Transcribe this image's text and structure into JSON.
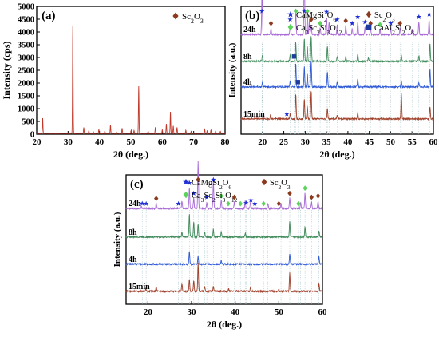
{
  "chart_data": [
    {
      "type": "line",
      "panel_label": "(a)",
      "xlabel": "2θ (deg.)",
      "ylabel": "Intensity (cps)",
      "xlim": [
        20,
        80
      ],
      "ylim": [
        0,
        5000
      ],
      "xticks": [
        20,
        30,
        40,
        50,
        60,
        70,
        80
      ],
      "yticks": [
        0,
        500,
        1000,
        1500,
        2000,
        2500,
        3000,
        3500,
        4000,
        4500,
        5000
      ],
      "legend": [
        {
          "symbol": "diamond",
          "color": "#8b3a1e",
          "label": "Sc2O3"
        }
      ],
      "legend_placement": "top-right",
      "grid": false,
      "line_color": "#c0392b",
      "baseline": 30,
      "peaks": [
        {
          "x": 21.9,
          "y": 600
        },
        {
          "x": 31.5,
          "y": 4200
        },
        {
          "x": 35.0,
          "y": 230
        },
        {
          "x": 36.6,
          "y": 110
        },
        {
          "x": 38.0,
          "y": 80
        },
        {
          "x": 39.8,
          "y": 150
        },
        {
          "x": 41.7,
          "y": 90
        },
        {
          "x": 43.5,
          "y": 330
        },
        {
          "x": 45.5,
          "y": 60
        },
        {
          "x": 47.2,
          "y": 210
        },
        {
          "x": 50.1,
          "y": 130
        },
        {
          "x": 51.0,
          "y": 120
        },
        {
          "x": 52.5,
          "y": 1840
        },
        {
          "x": 55.5,
          "y": 90
        },
        {
          "x": 57.8,
          "y": 240
        },
        {
          "x": 60.0,
          "y": 140
        },
        {
          "x": 61.3,
          "y": 370
        },
        {
          "x": 62.6,
          "y": 840
        },
        {
          "x": 63.5,
          "y": 300
        },
        {
          "x": 64.7,
          "y": 240
        },
        {
          "x": 67.5,
          "y": 120
        },
        {
          "x": 69.2,
          "y": 90
        },
        {
          "x": 73.5,
          "y": 160
        },
        {
          "x": 74.3,
          "y": 110
        },
        {
          "x": 75.5,
          "y": 140
        },
        {
          "x": 77.0,
          "y": 90
        },
        {
          "x": 78.5,
          "y": 80
        }
      ]
    },
    {
      "type": "line",
      "panel_label": "(b)",
      "xlabel": "2θ (deg.)",
      "ylabel": "Intensity (a.u.)",
      "xlim": [
        15,
        60
      ],
      "xticks": [
        20,
        25,
        30,
        35,
        40,
        45,
        50,
        55,
        60
      ],
      "legend": [
        {
          "symbol": "star",
          "color": "#1f2fd6",
          "label": "CaMgSi2O6"
        },
        {
          "symbol": "diamond",
          "color": "#8b3a1e",
          "label": "Sc2O3"
        },
        {
          "symbol": "diamond",
          "color": "#5bd35b",
          "label": "Ca3Sc2Si3O12"
        },
        {
          "symbol": "square",
          "color": "#1f3a9e",
          "label": "CaAl2Si2O8"
        }
      ],
      "legend_placement": "top-right",
      "grid": false,
      "dotted_reference_lines": true,
      "series": [
        {
          "name": "24h",
          "color": "#a86ad6",
          "offset": 0.78,
          "peaks": [
            [
              19.9,
              0.34
            ],
            [
              22.0,
              0.05
            ],
            [
              26.5,
              0.08
            ],
            [
              27.8,
              0.17
            ],
            [
              29.8,
              0.55
            ],
            [
              30.5,
              0.2
            ],
            [
              31.0,
              0.12
            ],
            [
              31.4,
              0.08
            ],
            [
              33.5,
              0.05
            ],
            [
              35.0,
              0.14
            ],
            [
              35.6,
              0.1
            ],
            [
              37.5,
              0.08
            ],
            [
              39.5,
              0.07
            ],
            [
              41.0,
              0.05
            ],
            [
              42.3,
              0.1
            ],
            [
              44.0,
              0.06
            ],
            [
              45.3,
              0.05
            ],
            [
              47.5,
              0.04
            ],
            [
              50.0,
              0.05
            ],
            [
              52.2,
              0.05
            ],
            [
              55.0,
              0.04
            ],
            [
              56.6,
              0.1
            ],
            [
              59.0,
              0.12
            ]
          ]
        },
        {
          "name": "8h",
          "color": "#3f8b5a",
          "offset": 0.57,
          "peaks": [
            [
              20.0,
              0.05
            ],
            [
              26.5,
              0.05
            ],
            [
              27.8,
              0.15
            ],
            [
              29.8,
              0.18
            ],
            [
              30.5,
              0.12
            ],
            [
              31.4,
              0.2
            ],
            [
              35.2,
              0.12
            ],
            [
              37.5,
              0.04
            ],
            [
              39.5,
              0.04
            ],
            [
              42.3,
              0.06
            ],
            [
              44.8,
              0.03
            ],
            [
              52.5,
              0.05
            ],
            [
              56.6,
              0.04
            ],
            [
              59.2,
              0.14
            ]
          ]
        },
        {
          "name": "4h",
          "color": "#2f5ad6",
          "offset": 0.37,
          "peaks": [
            [
              20.0,
              0.04
            ],
            [
              26.5,
              0.04
            ],
            [
              27.8,
              0.18
            ],
            [
              29.8,
              0.16
            ],
            [
              30.5,
              0.1
            ],
            [
              31.4,
              0.2
            ],
            [
              35.2,
              0.12
            ],
            [
              37.5,
              0.04
            ],
            [
              42.3,
              0.06
            ],
            [
              52.5,
              0.05
            ],
            [
              56.6,
              0.03
            ],
            [
              59.2,
              0.14
            ]
          ]
        },
        {
          "name": "15min",
          "color": "#a0402a",
          "offset": 0.12,
          "peaks": [
            [
              21.9,
              0.03
            ],
            [
              26.5,
              0.04
            ],
            [
              27.8,
              0.2
            ],
            [
              29.8,
              0.16
            ],
            [
              30.5,
              0.1
            ],
            [
              31.4,
              0.22
            ],
            [
              35.2,
              0.08
            ],
            [
              37.5,
              0.03
            ],
            [
              42.3,
              0.05
            ],
            [
              52.5,
              0.2
            ],
            [
              59.2,
              0.1
            ]
          ]
        }
      ],
      "markers": [
        {
          "x": 19.9,
          "type": "star",
          "series": "24h"
        },
        {
          "x": 22.0,
          "type": "diamond-brown",
          "series": "24h"
        },
        {
          "x": 26.5,
          "type": "star",
          "series": "24h"
        },
        {
          "x": 27.8,
          "type": "diamond-green",
          "series": "24h"
        },
        {
          "x": 29.8,
          "type": "star",
          "series": "24h"
        },
        {
          "x": 30.5,
          "type": "diamond-green",
          "series": "24h"
        },
        {
          "x": 31.4,
          "type": "diamond-brown",
          "series": "24h"
        },
        {
          "x": 33.5,
          "type": "diamond-green",
          "series": "24h"
        },
        {
          "x": 35.0,
          "type": "star",
          "series": "24h"
        },
        {
          "x": 37.5,
          "type": "star",
          "series": "24h"
        },
        {
          "x": 39.5,
          "type": "diamond-brown",
          "series": "24h"
        },
        {
          "x": 41.0,
          "type": "star",
          "series": "24h"
        },
        {
          "x": 42.3,
          "type": "star",
          "series": "24h"
        },
        {
          "x": 44.0,
          "type": "star",
          "series": "24h"
        },
        {
          "x": 45.3,
          "type": "diamond-brown",
          "series": "24h"
        },
        {
          "x": 47.5,
          "type": "diamond-green",
          "series": "24h"
        },
        {
          "x": 50.0,
          "type": "star",
          "series": "24h"
        },
        {
          "x": 52.2,
          "type": "diamond-brown",
          "series": "24h"
        },
        {
          "x": 56.6,
          "type": "star",
          "series": "24h"
        },
        {
          "x": 59.0,
          "type": "star",
          "series": "24h"
        },
        {
          "x": 27.4,
          "type": "square",
          "series": "8h"
        },
        {
          "x": 28.3,
          "type": "square",
          "series": "4h"
        },
        {
          "x": 25.7,
          "type": "star",
          "series": "15min"
        }
      ]
    },
    {
      "type": "line",
      "panel_label": "(c)",
      "xlabel": "2θ (deg.)",
      "ylabel": "Intensity (a.u.)",
      "xlim": [
        15,
        60
      ],
      "xticks": [
        20,
        30,
        40,
        50,
        60
      ],
      "legend": [
        {
          "symbol": "star",
          "color": "#1f2fd6",
          "label": "CaMgSi2O6"
        },
        {
          "symbol": "diamond",
          "color": "#8b3a1e",
          "label": "Sc2O3"
        },
        {
          "symbol": "diamond",
          "color": "#5bd35b",
          "label": "Ca3Sc2Si3O12"
        }
      ],
      "legend_placement": "top",
      "grid": false,
      "dotted_reference_lines": true,
      "series": [
        {
          "name": "24h",
          "color": "#a86ad6",
          "offset": 0.74,
          "peaks": [
            [
              18.5,
              0.02
            ],
            [
              21.9,
              0.04
            ],
            [
              27.8,
              0.06
            ],
            [
              29.5,
              0.16
            ],
            [
              30.5,
              0.08
            ],
            [
              31.5,
              0.36
            ],
            [
              33.5,
              0.05
            ],
            [
              35.0,
              0.22
            ],
            [
              36.8,
              0.06
            ],
            [
              39.8,
              0.05
            ],
            [
              42.3,
              0.06
            ],
            [
              43.5,
              0.05
            ],
            [
              47.5,
              0.04
            ],
            [
              50.5,
              0.04
            ],
            [
              52.5,
              0.08
            ],
            [
              55.0,
              0.05
            ],
            [
              56.0,
              0.12
            ],
            [
              57.5,
              0.05
            ],
            [
              59.0,
              0.06
            ]
          ]
        },
        {
          "name": "8h",
          "color": "#3f8b5a",
          "offset": 0.52,
          "peaks": [
            [
              27.8,
              0.04
            ],
            [
              29.5,
              0.18
            ],
            [
              30.5,
              0.12
            ],
            [
              31.5,
              0.1
            ],
            [
              33.0,
              0.04
            ],
            [
              35.0,
              0.06
            ],
            [
              36.8,
              0.04
            ],
            [
              42.3,
              0.03
            ],
            [
              52.5,
              0.12
            ],
            [
              56.0,
              0.08
            ],
            [
              59.2,
              0.05
            ]
          ]
        },
        {
          "name": "4h",
          "color": "#2f5ad6",
          "offset": 0.31,
          "peaks": [
            [
              29.5,
              0.1
            ],
            [
              31.5,
              0.06
            ],
            [
              36.8,
              0.03
            ],
            [
              52.5,
              0.08
            ],
            [
              59.2,
              0.06
            ]
          ]
        },
        {
          "name": "15min",
          "color": "#a0402a",
          "offset": 0.1,
          "peaks": [
            [
              19.5,
              0.02
            ],
            [
              21.9,
              0.03
            ],
            [
              27.8,
              0.06
            ],
            [
              29.5,
              0.1
            ],
            [
              30.5,
              0.08
            ],
            [
              31.5,
              0.22
            ],
            [
              33.0,
              0.04
            ],
            [
              35.0,
              0.04
            ],
            [
              38.5,
              0.02
            ],
            [
              43.5,
              0.03
            ],
            [
              50.0,
              0.02
            ],
            [
              52.5,
              0.14
            ],
            [
              59.2,
              0.06
            ]
          ]
        }
      ],
      "markers": [
        {
          "x": 18.7,
          "type": "star",
          "series": "24h"
        },
        {
          "x": 19.6,
          "type": "star",
          "series": "24h"
        },
        {
          "x": 21.9,
          "type": "diamond-brown",
          "series": "24h"
        },
        {
          "x": 27.0,
          "type": "star",
          "series": "24h"
        },
        {
          "x": 29.5,
          "type": "star",
          "series": "24h"
        },
        {
          "x": 30.5,
          "type": "star",
          "series": "24h"
        },
        {
          "x": 31.5,
          "type": "diamond-brown",
          "series": "24h"
        },
        {
          "x": 33.5,
          "type": "star",
          "series": "24h"
        },
        {
          "x": 35.0,
          "type": "star",
          "series": "24h"
        },
        {
          "x": 36.8,
          "type": "diamond-green",
          "series": "24h"
        },
        {
          "x": 38.4,
          "type": "diamond-green",
          "series": "24h"
        },
        {
          "x": 39.8,
          "type": "diamond-brown",
          "series": "24h"
        },
        {
          "x": 41.2,
          "type": "diamond-green",
          "series": "24h"
        },
        {
          "x": 42.5,
          "type": "star",
          "series": "24h"
        },
        {
          "x": 43.6,
          "type": "star",
          "series": "24h"
        },
        {
          "x": 44.5,
          "type": "star",
          "series": "24h"
        },
        {
          "x": 46.5,
          "type": "diamond-green",
          "series": "24h"
        },
        {
          "x": 50.0,
          "type": "diamond-brown",
          "series": "24h"
        },
        {
          "x": 52.5,
          "type": "diamond-brown",
          "series": "24h"
        },
        {
          "x": 54.5,
          "type": "diamond-green",
          "series": "24h"
        },
        {
          "x": 56.0,
          "type": "diamond-green",
          "series": "24h"
        },
        {
          "x": 57.5,
          "type": "diamond-brown",
          "series": "24h"
        },
        {
          "x": 59.0,
          "type": "diamond-brown",
          "series": "24h"
        }
      ]
    }
  ],
  "colors": {
    "star": "#1f2fd6",
    "diamond-brown": "#8b3a1e",
    "diamond-green": "#5bd35b",
    "square": "#1f3a9e",
    "dotted": "#a9c6cc"
  }
}
